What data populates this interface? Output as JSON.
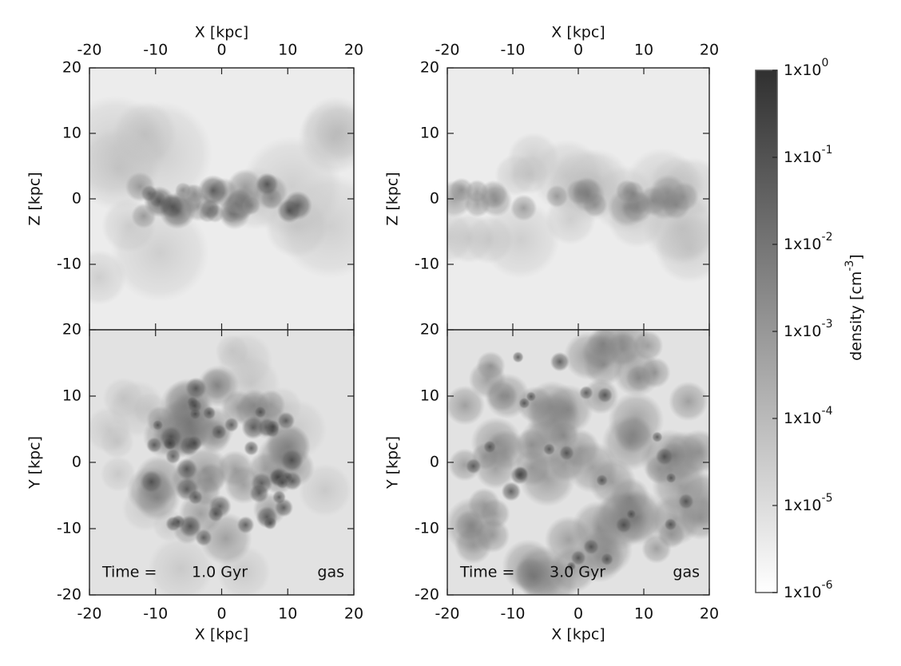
{
  "figure": {
    "panels": [
      {
        "xlabel": "X [kpc]",
        "xaxis_side": "top",
        "ylabel": "Z [kpc]",
        "xlim": [
          -20,
          20
        ],
        "ylim": [
          -20,
          20
        ],
        "xticks": [
          -20,
          -10,
          0,
          10,
          20
        ],
        "yticks": [
          -10,
          0,
          10,
          20
        ]
      },
      {
        "xlabel": "X [kpc]",
        "xaxis_side": "top",
        "ylabel": "Z [kpc]",
        "xlim": [
          -20,
          20
        ],
        "ylim": [
          -20,
          20
        ],
        "xticks": [
          -20,
          -10,
          0,
          10,
          20
        ],
        "yticks": [
          -10,
          0,
          10,
          20
        ]
      },
      {
        "xlabel": "X [kpc]",
        "xaxis_side": "bottom",
        "ylabel": "Y [kpc]",
        "xlim": [
          -20,
          20
        ],
        "ylim": [
          -20,
          20
        ],
        "xticks": [
          -20,
          -10,
          0,
          10,
          20
        ],
        "yticks": [
          -20,
          -10,
          0,
          10,
          20
        ],
        "time_label": "Time =",
        "time": "1.0 Gyr",
        "component": "gas"
      },
      {
        "xlabel": "X [kpc]",
        "xaxis_side": "bottom",
        "ylabel": "Y [kpc]",
        "xlim": [
          -20,
          20
        ],
        "ylim": [
          -20,
          20
        ],
        "xticks": [
          -20,
          -10,
          0,
          10,
          20
        ],
        "yticks": [
          -20,
          -10,
          0,
          10,
          20
        ],
        "time_label": "Time =",
        "time": "3.0 Gyr",
        "component": "gas"
      }
    ],
    "colorbar": {
      "label_parts": [
        "density [cm",
        "-3",
        "]"
      ],
      "clim": [
        -6,
        0
      ],
      "ticks": [
        {
          "base": "1x10",
          "exponent": 0
        },
        {
          "base": "1x10",
          "exponent": -1
        },
        {
          "base": "1x10",
          "exponent": -2
        },
        {
          "base": "1x10",
          "exponent": -3
        },
        {
          "base": "1x10",
          "exponent": -4
        },
        {
          "base": "1x10",
          "exponent": -5
        },
        {
          "base": "1x10",
          "exponent": -6
        }
      ]
    }
  }
}
